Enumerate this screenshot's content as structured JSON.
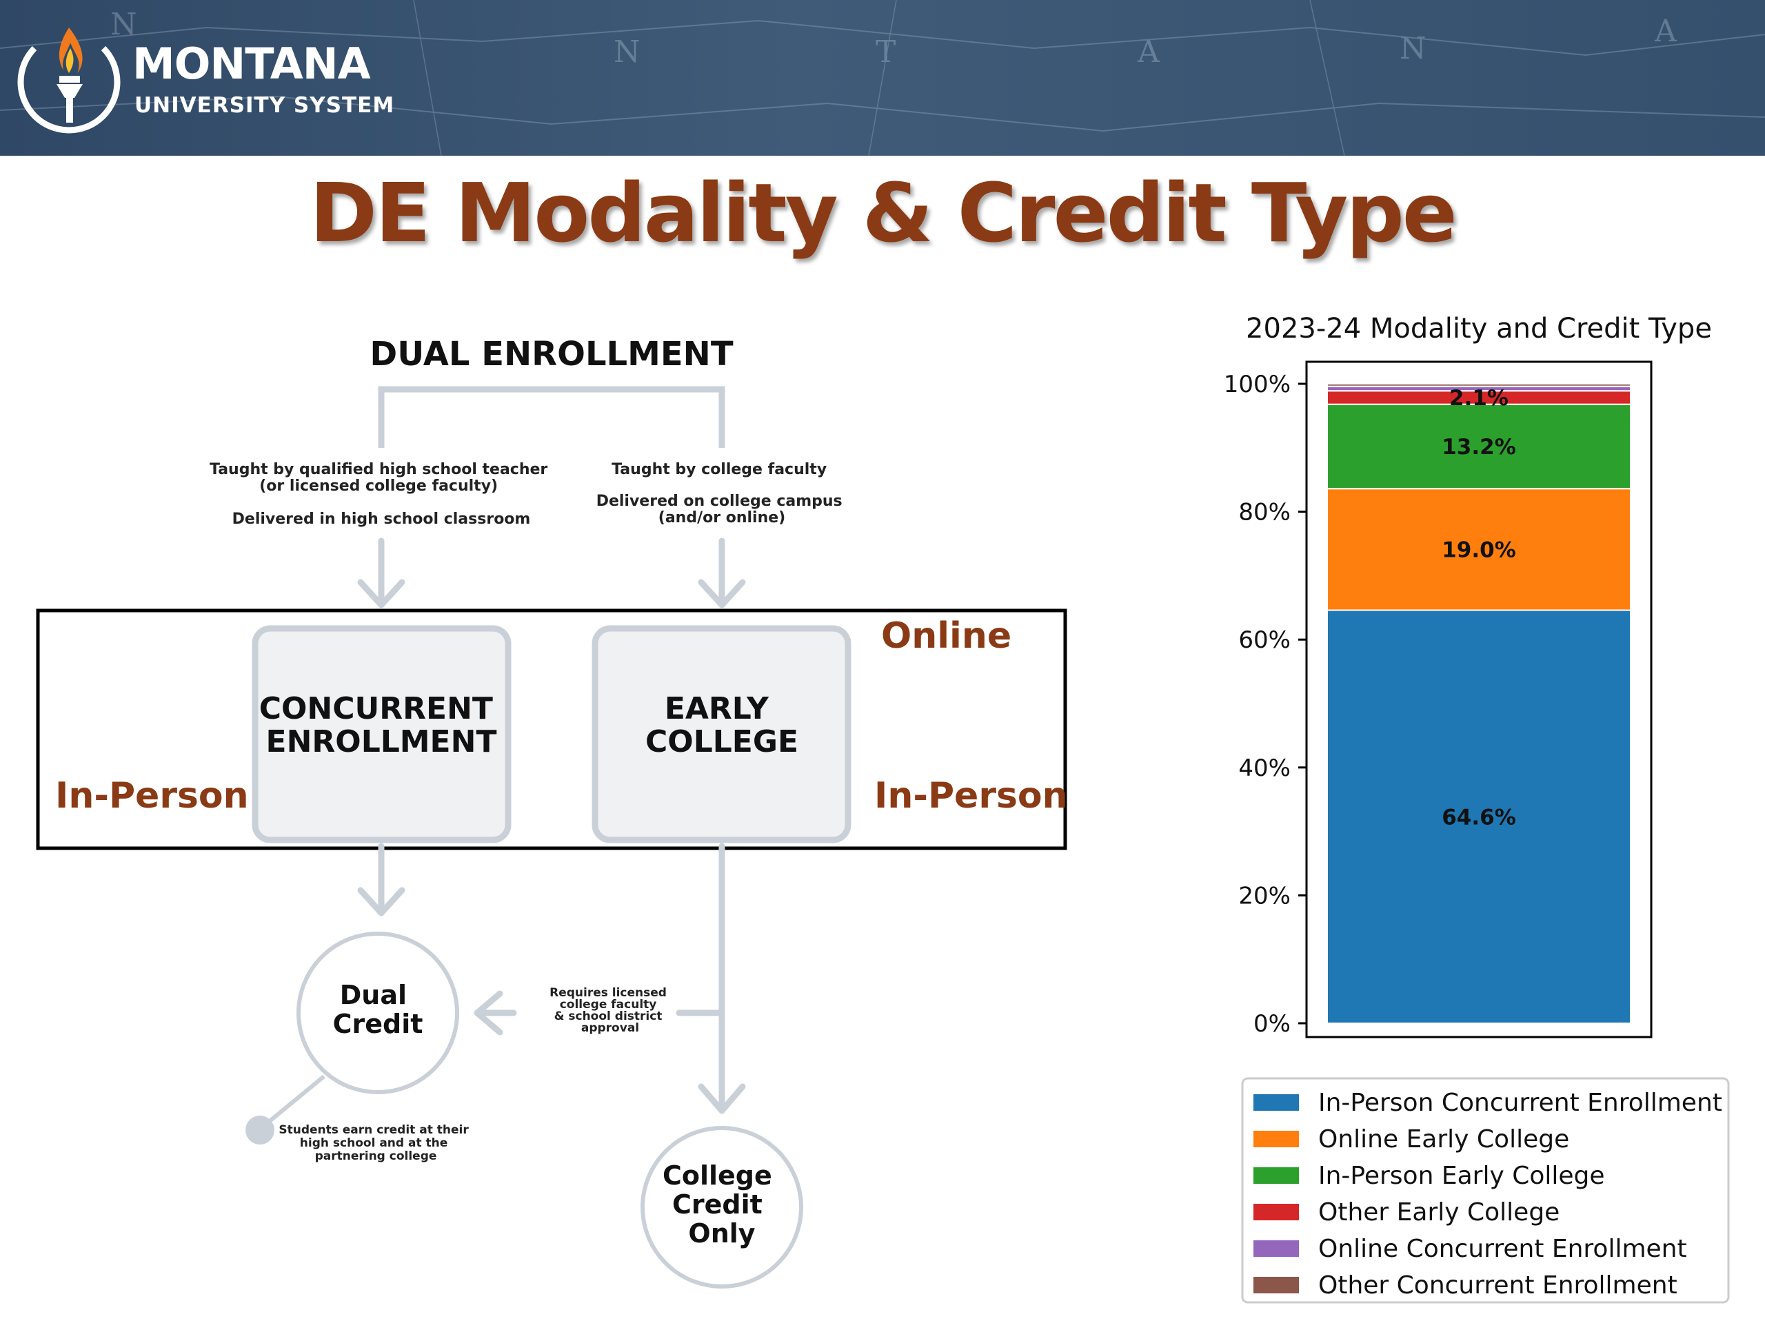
{
  "header": {
    "logo_word": "MONTANA",
    "logo_sub": "UNIVERSITY SYSTEM",
    "map_letters": [
      "N",
      "N",
      "T",
      "A",
      "N",
      "A"
    ]
  },
  "title": "DE Modality & Credit Type",
  "colors": {
    "title": "#8a3a14",
    "modality_label": "#8a3a14",
    "diagram_line": "#c9d0d8",
    "box_fill": "#f0f1f3",
    "header_bg": "#34506d"
  },
  "diagram": {
    "top_label": "DUAL ENROLLMENT",
    "left_branch_note": [
      "Taught by qualified high school teacher",
      "(or licensed college faculty)",
      "",
      "Delivered in high school classroom"
    ],
    "right_branch_note": [
      "Taught by college faculty",
      "",
      "Delivered on college campus",
      "(and/or online)"
    ],
    "box_concurrent": [
      "CONCURRENT",
      "ENROLLMENT"
    ],
    "box_early": [
      "EARLY",
      "COLLEGE"
    ],
    "modality_online": "Online",
    "modality_inperson_left": "In-Person",
    "modality_inperson_right": "In-Person",
    "requires_note": [
      "Requires licensed",
      "college faculty",
      "& school district",
      "approval"
    ],
    "dual_credit": [
      "Dual",
      "Credit"
    ],
    "students_note": [
      "Students earn credit at their",
      "high school and at the",
      "partnering college"
    ],
    "college_credit": [
      "College",
      "Credit",
      "Only"
    ]
  },
  "chart_data": {
    "type": "bar",
    "stacked": true,
    "normalized": true,
    "title": "2023-24 Modality and Credit Type",
    "xlabel": "",
    "ylabel": "",
    "ylim": [
      0,
      100
    ],
    "yticks": [
      "0%",
      "20%",
      "40%",
      "60%",
      "80%",
      "100%"
    ],
    "ytick_values": [
      0,
      20,
      40,
      60,
      80,
      100
    ],
    "series": [
      {
        "name": "In-Person Concurrent Enrollment",
        "value": 64.6,
        "label": "64.6%",
        "color": "#1f77b4"
      },
      {
        "name": "Online Early College",
        "value": 19.0,
        "label": "19.0%",
        "color": "#ff7f0e"
      },
      {
        "name": "In-Person Early College",
        "value": 13.2,
        "label": "13.2%",
        "color": "#2ca02c"
      },
      {
        "name": "Other Early College",
        "value": 2.1,
        "label": "2.1%",
        "color": "#d62728"
      },
      {
        "name": "Online Concurrent Enrollment",
        "value": 0.7,
        "label": "",
        "color": "#9467bd"
      },
      {
        "name": "Other Concurrent Enrollment",
        "value": 0.4,
        "label": "",
        "color": "#8c564b"
      }
    ],
    "legend_position": "bottom",
    "grid": false
  }
}
